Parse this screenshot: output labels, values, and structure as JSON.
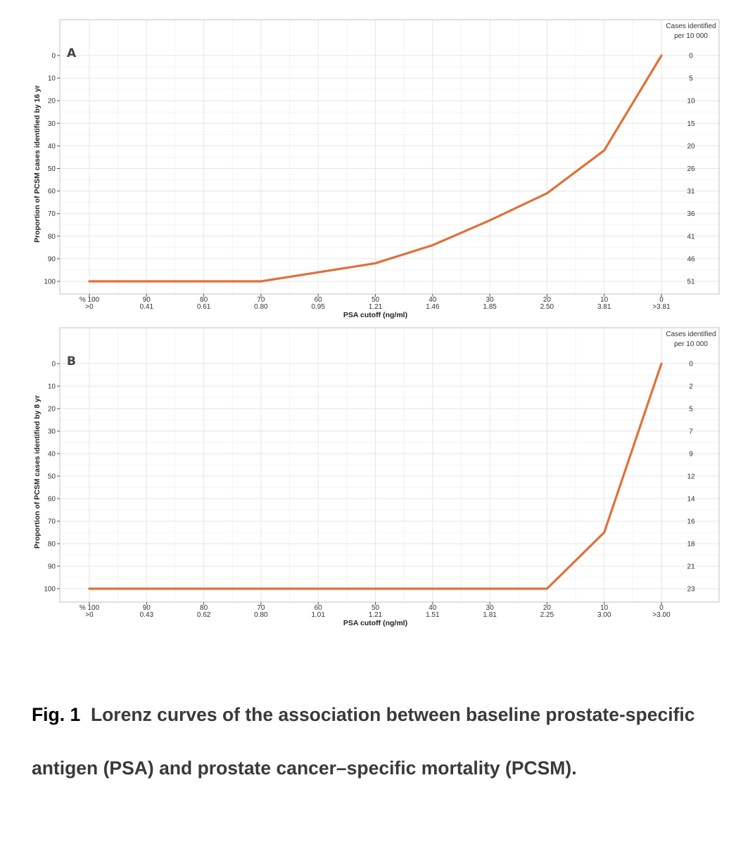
{
  "chart_data": [
    {
      "type": "line",
      "panel_label": "A",
      "ylabel": "Proportion of PCSM cases identified by 16 yr",
      "xlabel": "PSA cutoff (ng/ml)",
      "x_ticks_pct": [
        "% 100",
        "90",
        "80",
        "70",
        "60",
        "50",
        "40",
        "30",
        "20",
        "10",
        "0"
      ],
      "x_ticks_psa": [
        ">0",
        "0.41",
        "0.61",
        "0.80",
        "0.95",
        "1.21",
        "1.46",
        "1.85",
        "2.50",
        "3.81",
        ">3.81"
      ],
      "y_ticks": [
        "0",
        "10",
        "20",
        "30",
        "40",
        "50",
        "60",
        "70",
        "80",
        "90",
        "100"
      ],
      "secondary_axis_title": [
        "Cases identified",
        "per 10 000"
      ],
      "secondary_ticks": [
        "0",
        "5",
        "10",
        "15",
        "20",
        "26",
        "31",
        "36",
        "41",
        "46",
        "51"
      ],
      "x": [
        100,
        90,
        80,
        70,
        60,
        50,
        40,
        30,
        20,
        10,
        0
      ],
      "y": [
        100,
        100,
        100,
        100,
        96,
        92,
        84,
        73,
        61,
        42,
        0
      ],
      "xlim": [
        100,
        0
      ],
      "ylim": [
        0,
        100
      ],
      "y_reversed": true,
      "line_color": "#e07038",
      "grid": true
    },
    {
      "type": "line",
      "panel_label": "B",
      "ylabel": "Proportion of PCSM cases identified by 8 yr",
      "xlabel": "PSA cutoff (ng/ml)",
      "x_ticks_pct": [
        "% 100",
        "90",
        "80",
        "70",
        "60",
        "50",
        "40",
        "30",
        "20",
        "10",
        "0"
      ],
      "x_ticks_psa": [
        ">0",
        "0.43",
        "0.62",
        "0.80",
        "1.01",
        "1.21",
        "1.51",
        "1.81",
        "2.25",
        "3.00",
        ">3.00"
      ],
      "y_ticks": [
        "0",
        "10",
        "20",
        "30",
        "40",
        "50",
        "60",
        "70",
        "80",
        "90",
        "100"
      ],
      "secondary_axis_title": [
        "Cases identified",
        "per 10 000"
      ],
      "secondary_ticks": [
        "0",
        "2",
        "5",
        "7",
        "9",
        "12",
        "14",
        "16",
        "18",
        "21",
        "23"
      ],
      "x": [
        100,
        90,
        80,
        70,
        60,
        50,
        40,
        30,
        20,
        10,
        0
      ],
      "y": [
        100,
        100,
        100,
        100,
        100,
        100,
        100,
        100,
        100,
        75,
        0
      ],
      "xlim": [
        100,
        0
      ],
      "ylim": [
        0,
        100
      ],
      "y_reversed": true,
      "line_color": "#e07038",
      "grid": true
    }
  ],
  "caption": {
    "label": "Fig. 1",
    "text": "Lorenz curves of the association between baseline prostate-specific antigen (PSA) and prostate cancer–specific mortality (PCSM)."
  }
}
